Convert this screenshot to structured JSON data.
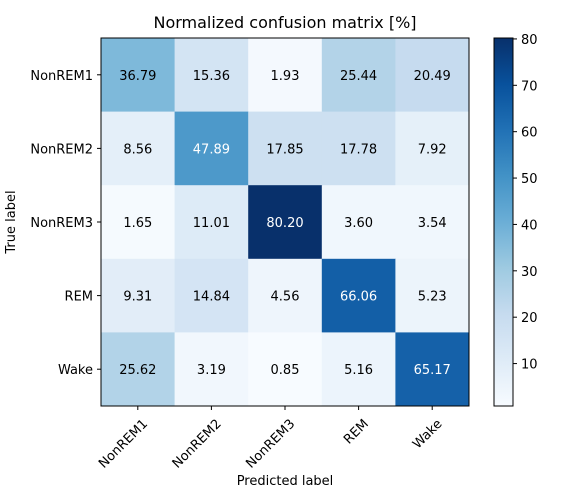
{
  "chart_data": {
    "type": "heatmap",
    "title": "Normalized confusion matrix [%]",
    "xlabel": "Predicted label",
    "ylabel": "True label",
    "x_categories": [
      "NonREM1",
      "NonREM2",
      "NonREM3",
      "REM",
      "Wake"
    ],
    "y_categories": [
      "NonREM1",
      "NonREM2",
      "NonREM3",
      "REM",
      "Wake"
    ],
    "values": [
      [
        36.79,
        15.36,
        1.93,
        25.44,
        20.49
      ],
      [
        8.56,
        47.89,
        17.85,
        17.78,
        7.92
      ],
      [
        1.65,
        11.01,
        80.2,
        3.6,
        3.54
      ],
      [
        9.31,
        14.84,
        4.56,
        66.06,
        5.23
      ],
      [
        25.62,
        3.19,
        0.85,
        5.16,
        65.17
      ]
    ],
    "value_labels": [
      [
        "36.79",
        "15.36",
        "1.93",
        "25.44",
        "20.49"
      ],
      [
        "8.56",
        "47.89",
        "17.85",
        "17.78",
        "7.92"
      ],
      [
        "1.65",
        "11.01",
        "80.20",
        "3.60",
        "3.54"
      ],
      [
        "9.31",
        "14.84",
        "4.56",
        "66.06",
        "5.23"
      ],
      [
        "25.62",
        "3.19",
        "0.85",
        "5.16",
        "65.17"
      ]
    ],
    "colormap": "Blues",
    "color_range": [
      0.85,
      80.2
    ],
    "colorbar": {
      "ticks": [
        10,
        20,
        30,
        40,
        50,
        60,
        70,
        80
      ],
      "tick_labels": [
        "10",
        "20",
        "30",
        "40",
        "50",
        "60",
        "70",
        "80"
      ]
    },
    "grid": false,
    "legend": "none"
  }
}
